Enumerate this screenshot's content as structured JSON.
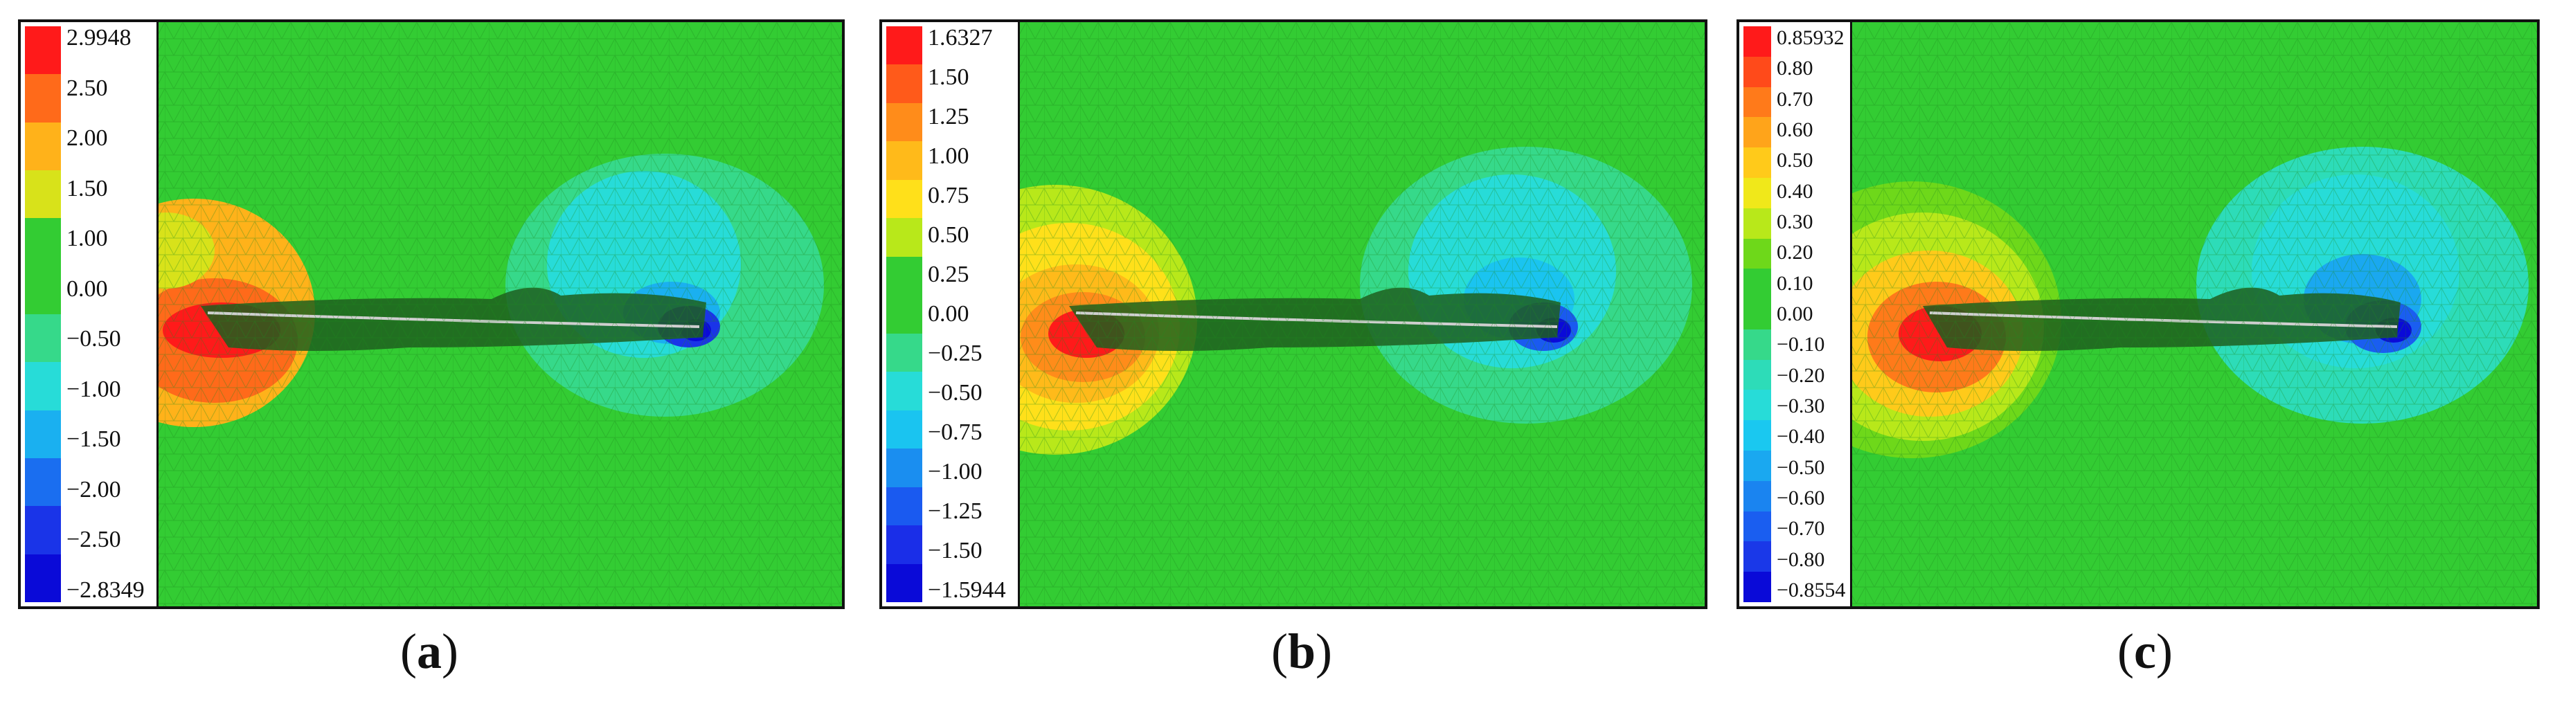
{
  "panels": [
    {
      "caption_letter": "a",
      "legend": {
        "colors": [
          "#ff1a1a",
          "#ff6a1a",
          "#ffb21a",
          "#d8e21a",
          "#33cc33",
          "#33cc33",
          "#36d98a",
          "#27dcd8",
          "#1ab0f0",
          "#1a6ef0",
          "#1a34e8",
          "#0a0ad8"
        ],
        "labels": [
          "2.9948",
          "2.50",
          "2.00",
          "1.50",
          "1.00",
          "0.00",
          "−0.50",
          "−1.00",
          "−1.50",
          "−2.00",
          "−2.50",
          "−2.8349"
        ]
      }
    },
    {
      "caption_letter": "b",
      "legend": {
        "colors": [
          "#ff1a1a",
          "#ff5a1a",
          "#ff8c1a",
          "#ffba1a",
          "#ffe01a",
          "#b8e81a",
          "#33cc33",
          "#33cc33",
          "#36d98a",
          "#27dcd8",
          "#1ac4f0",
          "#1a8ef0",
          "#1a5af0",
          "#1a2ee8",
          "#0a0ad8"
        ],
        "labels": [
          "1.6327",
          "1.50",
          "1.25",
          "1.00",
          "0.75",
          "0.50",
          "0.25",
          "0.00",
          "−0.25",
          "−0.50",
          "−0.75",
          "−1.00",
          "−1.25",
          "−1.50",
          "−1.5944"
        ]
      }
    },
    {
      "caption_letter": "c",
      "legend": {
        "colors": [
          "#ff1a1a",
          "#ff4a1a",
          "#ff7a1a",
          "#ffa41a",
          "#ffca1a",
          "#f0e81a",
          "#b8e81a",
          "#6ed81a",
          "#33cc33",
          "#33cc33",
          "#36d98a",
          "#2ddcb8",
          "#27dcd8",
          "#1ac8f0",
          "#1aa8f0",
          "#1a84f0",
          "#1a5ef0",
          "#1a38e8",
          "#0a0ad8"
        ],
        "labels": [
          "0.85932",
          "0.80",
          "0.70",
          "0.60",
          "0.50",
          "0.40",
          "0.30",
          "0.20",
          "0.10",
          "0.00",
          "−0.10",
          "−0.20",
          "−0.30",
          "−0.40",
          "−0.50",
          "−0.60",
          "−0.70",
          "−0.80",
          "−0.8554"
        ]
      }
    }
  ]
}
